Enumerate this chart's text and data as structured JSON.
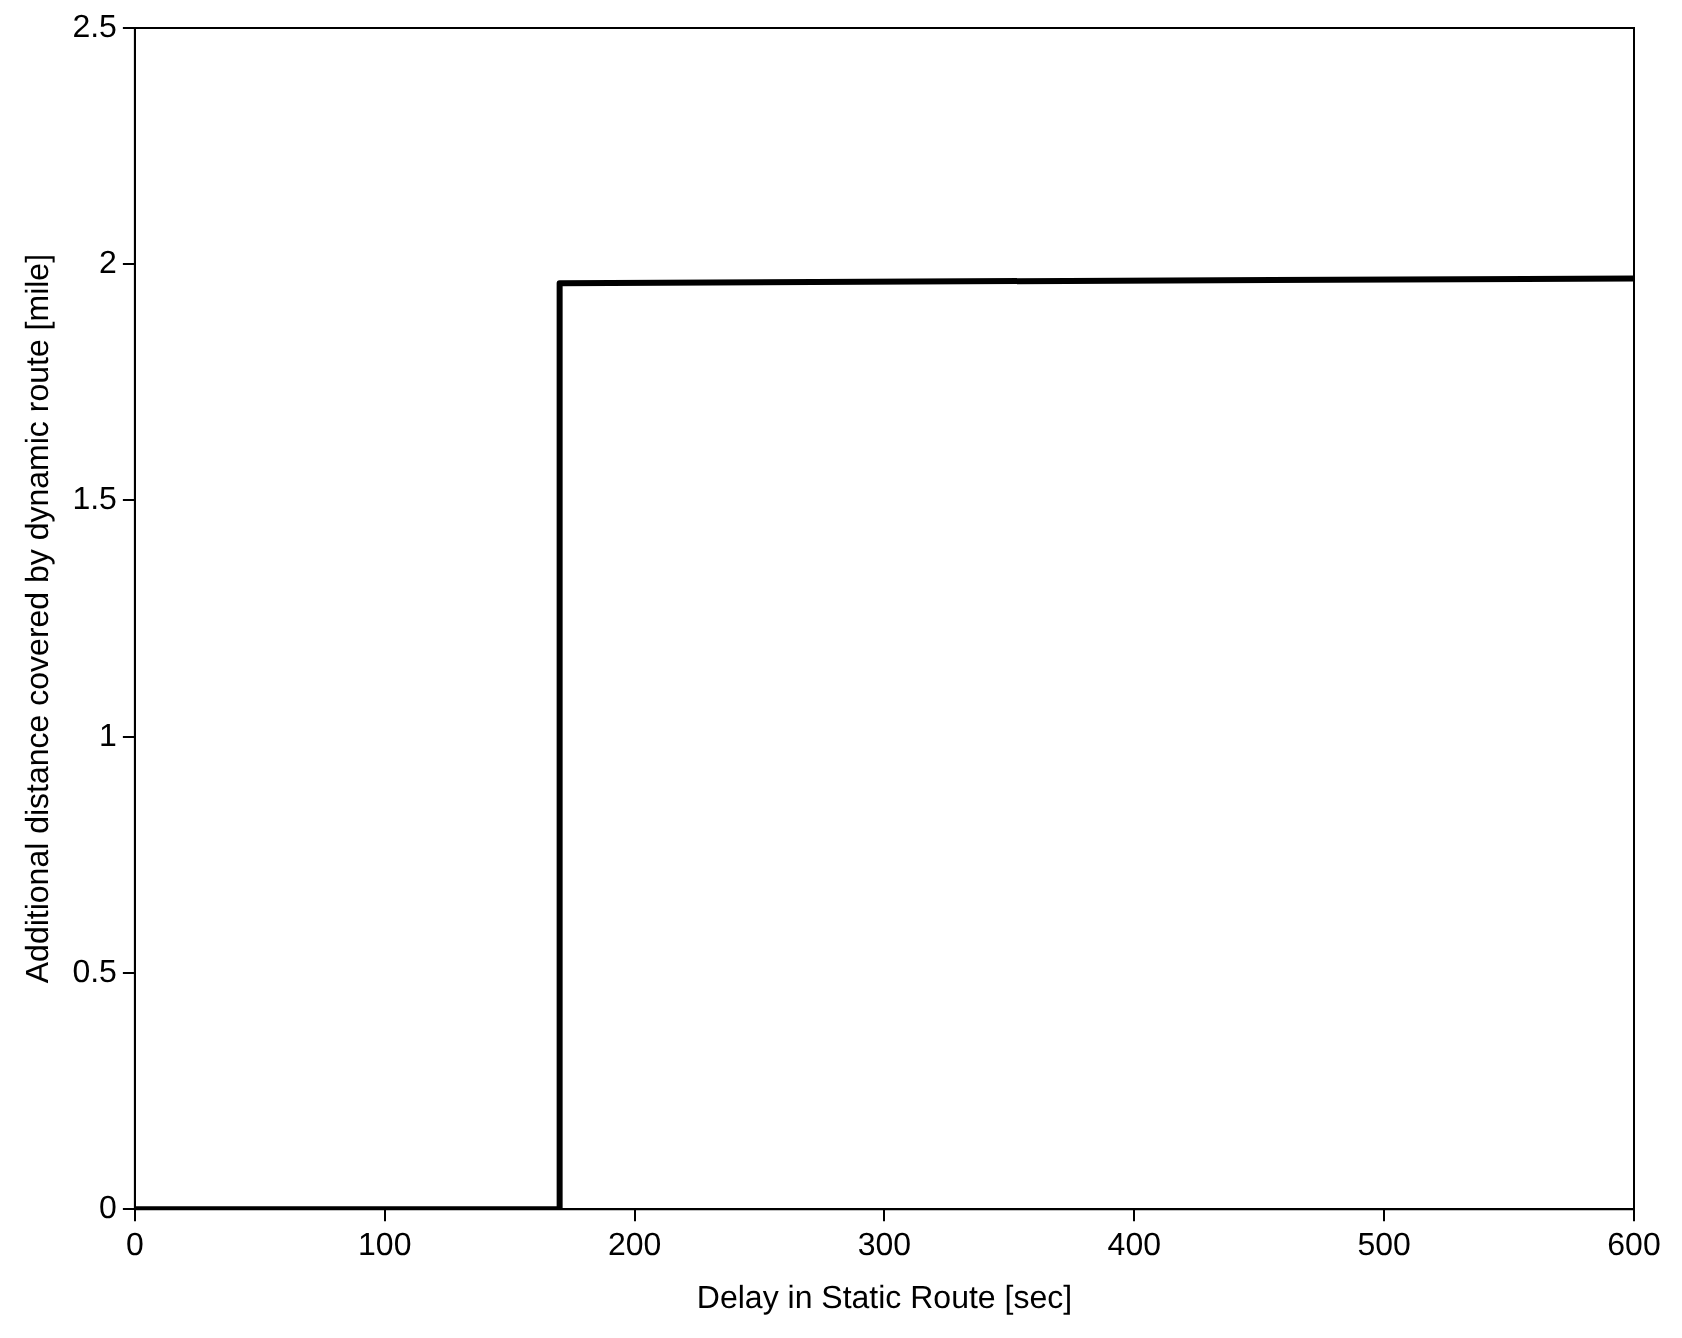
{
  "chart_data": {
    "type": "line",
    "xlabel": "Delay in Static Route [sec]",
    "ylabel": "Additional distance covered by dynamic route [mile]",
    "x": [
      0,
      170,
      170,
      600
    ],
    "series": [
      {
        "color": "#000000",
        "values": [
          0,
          0,
          1.96,
          1.97
        ]
      }
    ],
    "xlim": [
      0,
      600
    ],
    "xticks": [
      0,
      100,
      200,
      300,
      400,
      500,
      600
    ],
    "ylim": [
      0,
      2.5
    ],
    "yticks": [
      0,
      0.5,
      1,
      1.5,
      2,
      2.5
    ],
    "grid": false,
    "legend": false,
    "marker": "none",
    "line_style": "solid"
  }
}
